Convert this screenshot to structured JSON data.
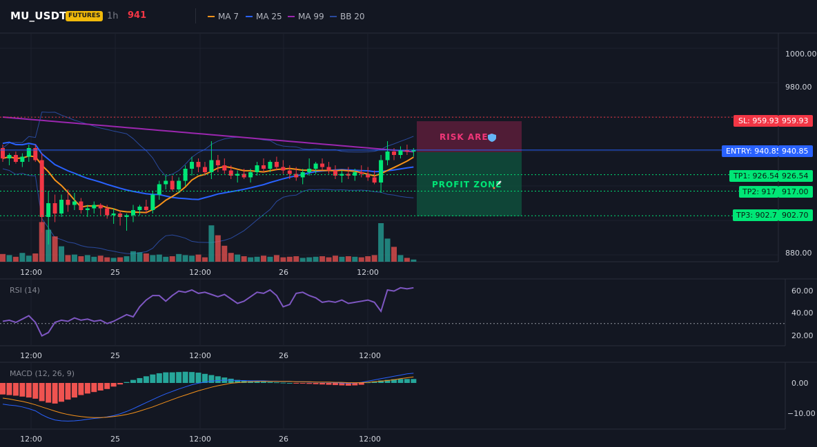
{
  "header": {
    "symbol": "MU_USDT",
    "badge": "FUTURES",
    "timeframe": "1h",
    "last_price": "941"
  },
  "legend": [
    {
      "label": "MA 7",
      "color": "#f7931a"
    },
    {
      "label": "MA 25",
      "color": "#2962ff"
    },
    {
      "label": "MA 99",
      "color": "#9c27b0"
    },
    {
      "label": "BB 20",
      "color": "#2a4a9e"
    }
  ],
  "colors": {
    "up": "#00e676",
    "down": "#f23645",
    "vol_up": "#26a69a",
    "vol_down": "#ef5350"
  },
  "zones": {
    "risk_label": "RISK AREA",
    "risk_icon": "shield-icon",
    "profit_label": "PROFIT ZONE",
    "profit_icon": "rocket-icon"
  },
  "levels": {
    "sl": {
      "text": "SL: 959.93",
      "axis": "959.93",
      "value": 959.93
    },
    "entry": {
      "text": "ENTRY: 940.85",
      "axis": "940.85",
      "value": 940.85
    },
    "tp1": {
      "text": "TP1: 926.54",
      "axis": "926.54",
      "value": 926.54
    },
    "tp2": {
      "text": "TP2: 917",
      "axis": "917.00",
      "value": 917
    },
    "tp3": {
      "text": "TP3: 902.7",
      "axis": "902.70",
      "value": 902.7
    }
  },
  "price_axis": [
    "1000.00",
    "980.00",
    "880.00"
  ],
  "time_axis": [
    "12:00",
    "25",
    "12:00",
    "26",
    "12:00"
  ],
  "rsi": {
    "label": "RSI (14)",
    "axis": [
      "60.00",
      "40.00",
      "20.00"
    ],
    "level": 30
  },
  "macd": {
    "label": "MACD (12, 26, 9)",
    "axis": [
      "0.00",
      "−10.00"
    ]
  },
  "chart_data": {
    "type": "candlestick",
    "price_range": [
      876,
      1008
    ],
    "candles": [
      [
        942,
        944,
        934,
        936
      ],
      [
        936,
        939,
        932,
        938
      ],
      [
        938,
        940,
        933,
        934
      ],
      [
        934,
        939,
        931,
        937
      ],
      [
        937,
        944,
        934,
        942
      ],
      [
        942,
        944,
        934,
        935
      ],
      [
        935,
        939,
        893,
        902
      ],
      [
        902,
        917,
        886,
        910
      ],
      [
        910,
        915,
        899,
        904
      ],
      [
        904,
        915,
        902,
        912
      ],
      [
        912,
        918,
        905,
        909
      ],
      [
        909,
        916,
        906,
        911
      ],
      [
        911,
        913,
        904,
        906
      ],
      [
        906,
        909,
        902,
        907
      ],
      [
        907,
        911,
        904,
        909
      ],
      [
        909,
        910,
        903,
        907
      ],
      [
        907,
        909,
        901,
        903
      ],
      [
        903,
        907,
        898,
        904
      ],
      [
        904,
        906,
        897,
        902
      ],
      [
        902,
        904,
        894,
        903
      ],
      [
        903,
        909,
        899,
        906
      ],
      [
        906,
        909,
        903,
        908
      ],
      [
        908,
        912,
        904,
        906
      ],
      [
        906,
        917,
        904,
        915
      ],
      [
        915,
        923,
        912,
        921
      ],
      [
        921,
        926,
        918,
        923
      ],
      [
        923,
        926,
        917,
        918
      ],
      [
        918,
        925,
        916,
        923
      ],
      [
        923,
        932,
        920,
        930
      ],
      [
        930,
        937,
        926,
        934
      ],
      [
        934,
        936,
        928,
        931
      ],
      [
        931,
        934,
        926,
        928
      ],
      [
        928,
        946,
        924,
        935
      ],
      [
        935,
        938,
        928,
        932
      ],
      [
        932,
        936,
        927,
        929
      ],
      [
        929,
        932,
        924,
        926
      ],
      [
        926,
        929,
        922,
        927
      ],
      [
        927,
        930,
        924,
        925
      ],
      [
        925,
        930,
        922,
        928
      ],
      [
        928,
        934,
        926,
        932
      ],
      [
        932,
        936,
        928,
        930
      ],
      [
        930,
        935,
        928,
        934
      ],
      [
        934,
        937,
        929,
        931
      ],
      [
        931,
        935,
        927,
        929
      ],
      [
        929,
        932,
        924,
        927
      ],
      [
        927,
        931,
        923,
        925
      ],
      [
        925,
        930,
        921,
        928
      ],
      [
        928,
        936,
        926,
        930
      ],
      [
        930,
        934,
        927,
        933
      ],
      [
        933,
        936,
        929,
        931
      ],
      [
        931,
        934,
        927,
        929
      ],
      [
        929,
        932,
        924,
        926
      ],
      [
        926,
        929,
        922,
        927
      ],
      [
        927,
        931,
        924,
        926
      ],
      [
        926,
        930,
        923,
        928
      ],
      [
        928,
        932,
        925,
        927
      ],
      [
        927,
        931,
        923,
        925
      ],
      [
        925,
        929,
        921,
        922
      ],
      [
        922,
        938,
        916,
        935
      ],
      [
        935,
        946,
        932,
        940
      ],
      [
        940,
        942,
        935,
        938
      ],
      [
        938,
        943,
        936,
        941
      ],
      [
        941,
        944,
        938,
        940
      ],
      [
        940,
        942,
        937,
        941
      ]
    ],
    "volume": [
      14,
      12,
      9,
      16,
      11,
      15,
      72,
      58,
      46,
      28,
      12,
      13,
      10,
      12,
      9,
      11,
      8,
      7,
      8,
      10,
      19,
      17,
      15,
      12,
      13,
      9,
      10,
      14,
      12,
      11,
      13,
      8,
      66,
      48,
      29,
      16,
      13,
      10,
      8,
      9,
      11,
      9,
      12,
      8,
      9,
      10,
      7,
      8,
      9,
      10,
      8,
      11,
      9,
      10,
      9,
      8,
      10,
      12,
      70,
      42,
      27,
      12,
      7,
      4
    ],
    "rsi": [
      32,
      33,
      31,
      34,
      37,
      31,
      19,
      22,
      31,
      33,
      32,
      35,
      33,
      34,
      32,
      33,
      30,
      32,
      35,
      38,
      36,
      45,
      51,
      55,
      55,
      50,
      55,
      59,
      58,
      60,
      57,
      58,
      56,
      54,
      56,
      52,
      48,
      50,
      54,
      58,
      57,
      60,
      55,
      45,
      47,
      57,
      58,
      55,
      53,
      49,
      50,
      49,
      51,
      48,
      49,
      50,
      51,
      49,
      41,
      60,
      59,
      62,
      61,
      62
    ],
    "macd_hist": [
      -3.8,
      -4,
      -4.2,
      -4.5,
      -4.8,
      -5.2,
      -6,
      -6.5,
      -6.8,
      -6.2,
      -5.5,
      -4.8,
      -4,
      -3.5,
      -3,
      -2.5,
      -2,
      -1.2,
      -0.5,
      0.3,
      1,
      1.6,
      2.2,
      2.8,
      3.2,
      3.5,
      3.5,
      3.6,
      3.7,
      3.6,
      3.4,
      3,
      2.6,
      2.2,
      1.8,
      1.4,
      1,
      0.8,
      0.6,
      0.5,
      0.4,
      0.3,
      0.2,
      0.1,
      0,
      -0.1,
      -0.2,
      -0.3,
      -0.4,
      -0.5,
      -0.6,
      -0.7,
      -0.8,
      -0.9,
      -0.8,
      -0.6,
      0.2,
      0.5,
      0.8,
      1,
      1.2,
      1.3,
      1.3,
      1.3
    ],
    "macd_line": [
      -7,
      -7.3,
      -7.5,
      -7.9,
      -8.5,
      -9.2,
      -10.5,
      -11.5,
      -12.2,
      -12.5,
      -12.6,
      -12.5,
      -12.3,
      -12,
      -11.7,
      -11.5,
      -11.2,
      -10.8,
      -10.2,
      -9.4,
      -8.5,
      -7.5,
      -6.5,
      -5.5,
      -4.5,
      -3.6,
      -2.8,
      -2,
      -1.3,
      -0.6,
      -0.1,
      0.3,
      0.6,
      0.8,
      0.9,
      0.9,
      0.8,
      0.8,
      0.7,
      0.7,
      0.7,
      0.6,
      0.6,
      0.5,
      0.5,
      0.4,
      0.4,
      0.3,
      0.3,
      0.2,
      0.2,
      0.1,
      0,
      -0.1,
      0,
      0.2,
      0.6,
      1,
      1.4,
      1.8,
      2.2,
      2.6,
      3,
      3.2
    ],
    "signal_line": [
      -5,
      -5.3,
      -5.7,
      -6.1,
      -6.6,
      -7.2,
      -7.9,
      -8.6,
      -9.3,
      -9.9,
      -10.4,
      -10.8,
      -11.1,
      -11.3,
      -11.4,
      -11.4,
      -11.3,
      -11.1,
      -10.8,
      -10.4,
      -9.9,
      -9.3,
      -8.6,
      -7.9,
      -7.1,
      -6.3,
      -5.5,
      -4.7,
      -4,
      -3.3,
      -2.6,
      -2,
      -1.4,
      -0.9,
      -0.5,
      -0.1,
      0.1,
      0.3,
      0.4,
      0.5,
      0.5,
      0.5,
      0.5,
      0.5,
      0.5,
      0.4,
      0.4,
      0.4,
      0.3,
      0.3,
      0.3,
      0.2,
      0.2,
      0.1,
      0.1,
      0.1,
      0.2,
      0.4,
      0.6,
      0.8,
      1.1,
      1.4,
      1.7,
      2
    ]
  }
}
